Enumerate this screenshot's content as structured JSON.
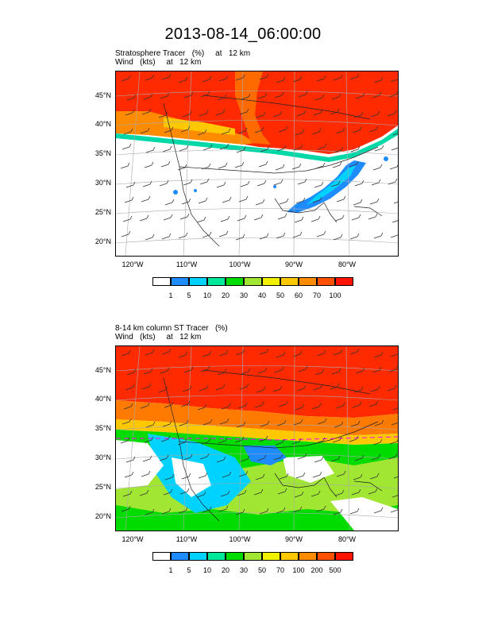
{
  "title": "2013-08-14_06:00:00",
  "panels": [
    {
      "subtitle_line1": "Stratosphere Tracer   (%)     at   12 km",
      "subtitle_line2": "Wind   (kts)     at   12 km",
      "lat_labels": [
        "45°N",
        "40°N",
        "35°N",
        "30°N",
        "25°N",
        "20°N"
      ],
      "lon_labels": [
        "120°W",
        "110°W",
        "100°W",
        "90°W",
        "80°W"
      ],
      "colorbar": {
        "levels": [
          "1",
          "5",
          "10",
          "20",
          "30",
          "40",
          "50",
          "60",
          "70",
          "100"
        ],
        "colors": [
          "#ffffff",
          "#1e8cff",
          "#00d2ff",
          "#00e89a",
          "#00dc00",
          "#a0e632",
          "#f0f000",
          "#ffc800",
          "#ff8c00",
          "#ff5000",
          "#ff1400"
        ]
      }
    },
    {
      "subtitle_line1": "8-14 km column ST Tracer   (%)",
      "subtitle_line2": "Wind   (kts)     at   12 km",
      "lat_labels": [
        "45°N",
        "40°N",
        "35°N",
        "30°N",
        "25°N",
        "20°N"
      ],
      "lon_labels": [
        "120°W",
        "110°W",
        "100°W",
        "90°W",
        "80°W"
      ],
      "colorbar": {
        "levels": [
          "1",
          "5",
          "10",
          "20",
          "30",
          "50",
          "70",
          "100",
          "200",
          "500"
        ],
        "colors": [
          "#ffffff",
          "#1e8cff",
          "#00d2ff",
          "#00e89a",
          "#00dc00",
          "#a0e632",
          "#f0f000",
          "#ffc800",
          "#ff8c00",
          "#ff5000",
          "#ff1400"
        ]
      }
    }
  ]
}
